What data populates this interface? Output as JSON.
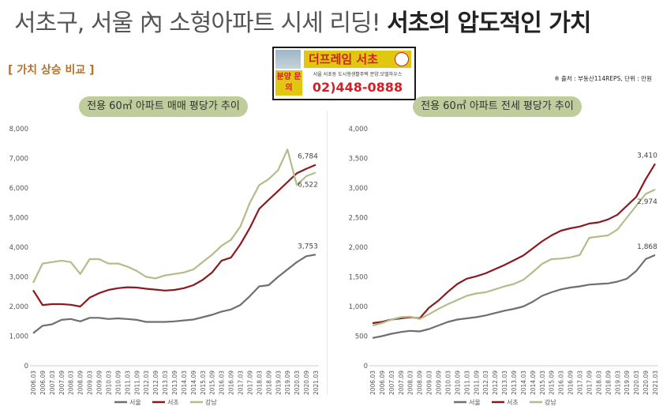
{
  "header": {
    "headline_light": "서초구, 서울 內 소형아파트 시세 리딩! ",
    "headline_bold": "서초의 압도적인 가치",
    "section_label": "[ 가치 상승 비교 ]",
    "source_note": "※ 출처 : 부동산114REPS, 단위 : 만원"
  },
  "ad": {
    "brand": "더프레임 서초",
    "badge": "분양 문의",
    "description": "서울 서초동 도시형생활주택 분양.모델하우스",
    "phone_prefix": "02)",
    "phone": "448-0888"
  },
  "colors": {
    "서울": "#6f6f6f",
    "서초": "#8b1a1f",
    "강남": "#b2bd8a",
    "pill_bg": "#bfcc9b"
  },
  "chart_data": [
    {
      "type": "line",
      "title": "전용 60㎡ 아파트 매매 평당가 추이",
      "ylim": [
        0,
        8000
      ],
      "yticks": [
        "0",
        "1,000",
        "2,000",
        "3,000",
        "4,000",
        "5,000",
        "6,000",
        "7,000",
        "8,000"
      ],
      "grid": false,
      "legend": "bottom",
      "x_labels": [
        "2006.03",
        "2006.09",
        "2007.03",
        "2007.09",
        "2008.03",
        "2008.09",
        "2009.03",
        "2009.09",
        "2010.03",
        "2010.09",
        "2011.03",
        "2011.09",
        "2012.03",
        "2012.09",
        "2013.03",
        "2013.09",
        "2014.03",
        "2014.09",
        "2015.03",
        "2015.09",
        "2016.03",
        "2016.09",
        "2017.03",
        "2017.09",
        "2018.03",
        "2018.09",
        "2019.03",
        "2019.09",
        "2020.03",
        "2020.09",
        "2021.03"
      ],
      "series": [
        {
          "name": "서울",
          "values": [
            1100,
            1350,
            1400,
            1550,
            1580,
            1500,
            1620,
            1620,
            1580,
            1600,
            1580,
            1550,
            1480,
            1480,
            1480,
            1500,
            1530,
            1560,
            1640,
            1720,
            1830,
            1900,
            2050,
            2350,
            2680,
            2720,
            3000,
            3250,
            3500,
            3700,
            3753
          ]
        },
        {
          "name": "서초",
          "values": [
            2550,
            2050,
            2080,
            2080,
            2060,
            2000,
            2300,
            2450,
            2560,
            2620,
            2650,
            2640,
            2600,
            2570,
            2540,
            2560,
            2620,
            2720,
            2900,
            3150,
            3550,
            3650,
            4100,
            4650,
            5300,
            5600,
            5900,
            6200,
            6500,
            6650,
            6784
          ]
        },
        {
          "name": "강남",
          "values": [
            2800,
            3450,
            3500,
            3550,
            3500,
            3100,
            3600,
            3600,
            3450,
            3450,
            3350,
            3200,
            3000,
            2950,
            3050,
            3100,
            3150,
            3250,
            3500,
            3750,
            4050,
            4250,
            4700,
            5500,
            6100,
            6300,
            6600,
            7300,
            6100,
            6400,
            6522
          ]
        }
      ],
      "end_labels": {
        "서울": "3,753",
        "서초": "6,784",
        "강남": "6,522"
      }
    },
    {
      "type": "line",
      "title": "전용 60㎡ 아파트 전세 평당가 추이",
      "ylim": [
        0,
        4000
      ],
      "yticks": [
        "0",
        "500",
        "1,000",
        "1,500",
        "2,000",
        "2,500",
        "3,000",
        "3,500",
        "4,000"
      ],
      "grid": false,
      "legend": "bottom",
      "x_labels": [
        "2006.03",
        "2006.09",
        "2007.03",
        "2007.09",
        "2008.03",
        "2008.09",
        "2009.03",
        "2009.09",
        "2010.03",
        "2010.09",
        "2011.03",
        "2011.09",
        "2012.03",
        "2012.09",
        "2013.03",
        "2013.09",
        "2014.03",
        "2014.09",
        "2015.03",
        "2015.09",
        "2016.03",
        "2016.09",
        "2017.03",
        "2017.09",
        "2018.03",
        "2018.09",
        "2019.03",
        "2019.09",
        "2020.03",
        "2020.09",
        "2021.03"
      ],
      "series": [
        {
          "name": "서울",
          "values": [
            470,
            500,
            540,
            570,
            590,
            580,
            620,
            680,
            740,
            780,
            800,
            820,
            850,
            890,
            930,
            960,
            1000,
            1080,
            1180,
            1240,
            1290,
            1320,
            1340,
            1370,
            1380,
            1390,
            1420,
            1470,
            1600,
            1800,
            1868
          ]
        },
        {
          "name": "서초",
          "values": [
            720,
            740,
            780,
            800,
            820,
            800,
            980,
            1100,
            1250,
            1380,
            1470,
            1510,
            1560,
            1630,
            1700,
            1780,
            1860,
            1980,
            2100,
            2200,
            2280,
            2320,
            2350,
            2400,
            2420,
            2470,
            2550,
            2700,
            2850,
            3150,
            3410
          ]
        },
        {
          "name": "강남",
          "values": [
            680,
            720,
            780,
            820,
            830,
            790,
            870,
            960,
            1040,
            1110,
            1180,
            1220,
            1240,
            1290,
            1340,
            1380,
            1450,
            1580,
            1720,
            1800,
            1810,
            1830,
            1870,
            2160,
            2180,
            2200,
            2300,
            2500,
            2700,
            2900,
            2974
          ]
        }
      ],
      "end_labels": {
        "서울": "1,868",
        "서초": "3,410",
        "강남": "2,974"
      }
    }
  ]
}
